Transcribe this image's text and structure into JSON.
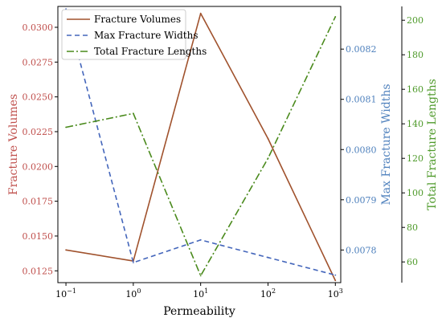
{
  "chart_data": {
    "type": "line",
    "title": "",
    "xlabel": "Permeability",
    "x_scale": "log",
    "x": [
      0.1,
      1,
      10,
      100,
      1000
    ],
    "x_tick_labels": [
      {
        "base": "10",
        "exp": "−1"
      },
      {
        "base": "10",
        "exp": "0"
      },
      {
        "base": "10",
        "exp": "1"
      },
      {
        "base": "10",
        "exp": "2"
      },
      {
        "base": "10",
        "exp": "3"
      }
    ],
    "axes": [
      {
        "id": "left",
        "label": "Fracture Volumes",
        "color": "#c0504d",
        "ylim": [
          0.01165,
          0.0315
        ],
        "ticks": [
          0.0125,
          0.015,
          0.0175,
          0.02,
          0.0225,
          0.025,
          0.0275,
          0.03
        ],
        "tick_labels": [
          "0.0125",
          "0.0150",
          "0.0175",
          "0.0200",
          "0.0225",
          "0.0250",
          "0.0275",
          "0.0300"
        ]
      },
      {
        "id": "right1",
        "label": "Max Fracture Widths",
        "color": "#4f81bd",
        "ylim": [
          0.007735,
          0.008285
        ],
        "ticks": [
          0.0078,
          0.0079,
          0.008,
          0.0081,
          0.0082
        ],
        "tick_labels": [
          "0.0078",
          "0.0079",
          "0.0080",
          "0.0081",
          "0.0082"
        ]
      },
      {
        "id": "right2",
        "label": "Total Fracture Lengths",
        "color": "#4e9a2a",
        "ylim": [
          48,
          208
        ],
        "ticks": [
          60,
          80,
          100,
          120,
          140,
          160,
          180,
          200
        ],
        "tick_labels": [
          "60",
          "80",
          "100",
          "120",
          "140",
          "160",
          "180",
          "200"
        ]
      }
    ],
    "series": [
      {
        "name": "Fracture Volumes",
        "axis": "left",
        "color": "#a0522d",
        "dash": "solid",
        "values": [
          0.014,
          0.0132,
          0.031,
          0.022,
          0.0118
        ]
      },
      {
        "name": "Max Fracture Widths",
        "axis": "right1",
        "color": "#4466bb",
        "dash": "dashed",
        "values": [
          0.00828,
          0.007775,
          0.00782,
          0.007785,
          0.00775
        ]
      },
      {
        "name": "Total Fracture Lengths",
        "axis": "right2",
        "color": "#4a8a1c",
        "dash": "dashdot",
        "values": [
          138,
          146,
          52,
          120,
          202
        ]
      }
    ],
    "legend_position": "top-left",
    "grid": false
  }
}
